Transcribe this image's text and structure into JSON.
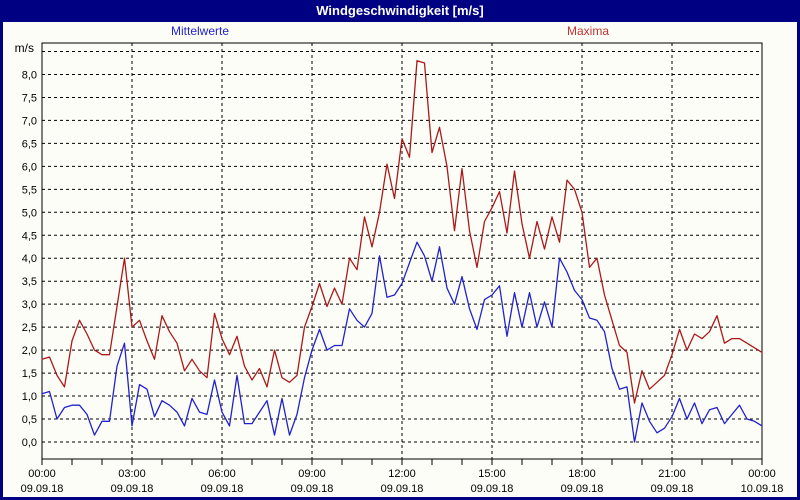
{
  "window": {
    "title": "Windgeschwindigkeit [m/s]"
  },
  "legend": {
    "items": [
      {
        "label": "Mittelwerte",
        "color": "#2222cc"
      },
      {
        "label": "Maxima",
        "color": "#c03333"
      }
    ]
  },
  "y_axis": {
    "unit_label": "m/s",
    "tick_labels": [
      "0,0",
      "0,5",
      "1,0",
      "1,5",
      "2,0",
      "2,5",
      "3,0",
      "3,5",
      "4,0",
      "4,5",
      "5,0",
      "5,5",
      "6,0",
      "6,5",
      "7,0",
      "7,5",
      "8,0"
    ]
  },
  "x_axis": {
    "ticks": [
      {
        "time": "00:00",
        "date": "09.09.18"
      },
      {
        "time": "03:00",
        "date": "09.09.18"
      },
      {
        "time": "06:00",
        "date": "09.09.18"
      },
      {
        "time": "09:00",
        "date": "09.09.18"
      },
      {
        "time": "12:00",
        "date": "09.09.18"
      },
      {
        "time": "15:00",
        "date": "09.09.18"
      },
      {
        "time": "18:00",
        "date": "09.09.18"
      },
      {
        "time": "21:00",
        "date": "09.09.18"
      },
      {
        "time": "00:00",
        "date": "10.09.18"
      }
    ]
  },
  "chart_data": {
    "type": "line",
    "title": "Windgeschwindigkeit [m/s]",
    "ylabel": "m/s",
    "xlim_hours": [
      0,
      24
    ],
    "ylim": [
      -0.5,
      8.5
    ],
    "y_gridline_step": 0.5,
    "y_labeled_max": 8.0,
    "x_gridline_hours": [
      3,
      6,
      9,
      12,
      15,
      18,
      21
    ],
    "x_minor_tick_step_hours": 1,
    "x_start_hour": 0,
    "x_step_hours": 0.25,
    "grid": true,
    "legend_position": "top",
    "series": [
      {
        "id": "mittelwerte-line",
        "name": "Mittelwerte",
        "color": "#2222cc",
        "values": [
          1.05,
          1.1,
          0.5,
          0.75,
          0.8,
          0.8,
          0.6,
          0.15,
          0.45,
          0.45,
          1.65,
          2.15,
          0.35,
          1.25,
          1.15,
          0.55,
          0.9,
          0.8,
          0.65,
          0.35,
          0.95,
          0.65,
          0.6,
          1.35,
          0.65,
          0.35,
          1.45,
          0.4,
          0.4,
          0.65,
          0.9,
          0.15,
          0.95,
          0.15,
          0.6,
          1.4,
          2.0,
          2.45,
          2.0,
          2.1,
          2.1,
          2.9,
          2.65,
          2.5,
          2.8,
          4.05,
          3.15,
          3.2,
          3.45,
          3.9,
          4.35,
          4.05,
          3.5,
          4.25,
          3.35,
          3.0,
          3.6,
          2.9,
          2.45,
          3.1,
          3.2,
          3.4,
          2.3,
          3.25,
          2.5,
          3.25,
          2.5,
          3.05,
          2.5,
          4.0,
          3.7,
          3.3,
          3.1,
          2.7,
          2.65,
          2.4,
          1.6,
          1.15,
          1.2,
          0.0,
          0.85,
          0.45,
          0.2,
          0.3,
          0.55,
          0.95,
          0.5,
          0.85,
          0.4,
          0.7,
          0.75,
          0.4,
          0.6,
          0.8,
          0.5,
          0.45,
          0.35
        ]
      },
      {
        "id": "maxima-line",
        "name": "Maxima",
        "color": "#ab1a1a",
        "values": [
          1.8,
          1.85,
          1.45,
          1.2,
          2.2,
          2.65,
          2.35,
          2.0,
          1.9,
          1.9,
          2.95,
          4.0,
          2.5,
          2.65,
          2.2,
          1.8,
          2.75,
          2.4,
          2.15,
          1.55,
          1.8,
          1.55,
          1.4,
          2.8,
          2.25,
          1.9,
          2.3,
          1.65,
          1.35,
          1.6,
          1.2,
          2.0,
          1.4,
          1.3,
          1.45,
          2.5,
          2.95,
          3.45,
          2.95,
          3.35,
          3.0,
          4.0,
          3.75,
          4.9,
          4.25,
          5.0,
          6.05,
          5.3,
          6.6,
          6.2,
          8.3,
          8.25,
          6.3,
          6.85,
          6.0,
          4.6,
          5.95,
          4.6,
          3.8,
          4.8,
          5.1,
          5.45,
          4.55,
          5.9,
          4.75,
          4.0,
          4.8,
          4.2,
          4.9,
          4.35,
          5.7,
          5.5,
          5.0,
          3.8,
          4.0,
          3.2,
          2.65,
          2.1,
          1.95,
          0.85,
          1.55,
          1.15,
          1.3,
          1.45,
          1.9,
          2.45,
          2.0,
          2.35,
          2.25,
          2.4,
          2.75,
          2.15,
          2.25,
          2.25,
          2.15,
          2.05,
          1.95
        ]
      }
    ]
  }
}
